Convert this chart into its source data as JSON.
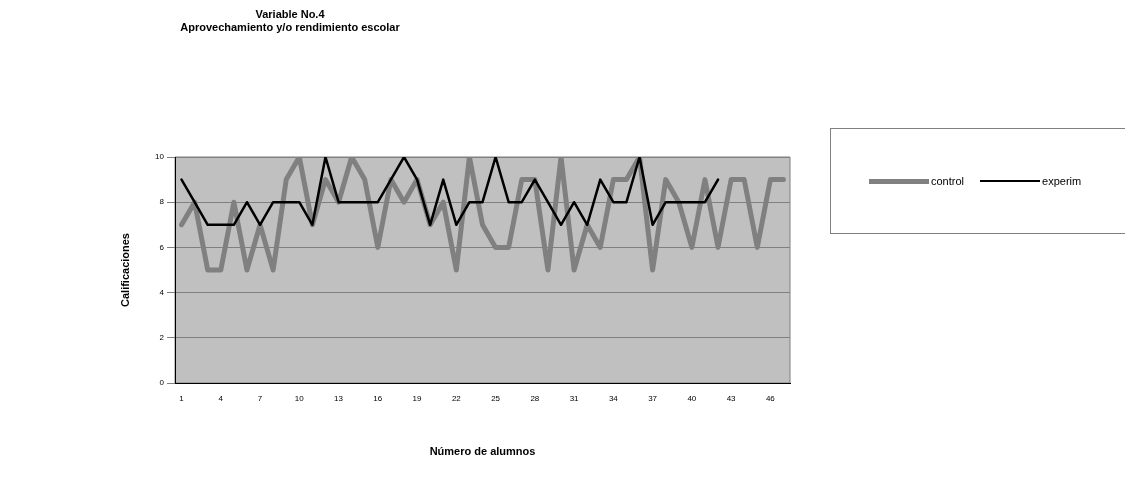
{
  "chart_data": {
    "type": "line",
    "title": "Variable No.4\nAprovechamiento y/o rendimiento escolar",
    "xlabel": "Número de alumnos",
    "ylabel": "Calificaciones",
    "categories": [
      "1",
      null,
      null,
      "4",
      null,
      null,
      "7",
      null,
      null,
      "10",
      null,
      null,
      "13",
      null,
      null,
      "16",
      null,
      null,
      "19",
      null,
      null,
      "22",
      null,
      null,
      "25",
      null,
      null,
      "28",
      null,
      null,
      "31",
      null,
      null,
      "34",
      null,
      null,
      "37",
      null,
      null,
      "40",
      null,
      null,
      "43",
      null,
      null,
      "46",
      null
    ],
    "series": [
      {
        "name": "control",
        "color": "#808080",
        "values": [
          7,
          8,
          5,
          5,
          8,
          5,
          7,
          5,
          9,
          10,
          7,
          9,
          8,
          10,
          9,
          6,
          9,
          8,
          9,
          7,
          8,
          5,
          10,
          7,
          6,
          6,
          9,
          9,
          5,
          10,
          5,
          7,
          6,
          9,
          9,
          10,
          5,
          9,
          8,
          6,
          9,
          6,
          9,
          9,
          6,
          9,
          9
        ]
      },
      {
        "name": "experim",
        "color": "#000000",
        "values": [
          9,
          8,
          7,
          7,
          7,
          8,
          7,
          8,
          8,
          8,
          7,
          10,
          8,
          8,
          8,
          8,
          9,
          10,
          9,
          7,
          9,
          7,
          8,
          8,
          10,
          8,
          8,
          9,
          8,
          7,
          8,
          7,
          9,
          8,
          8,
          10,
          7,
          8,
          8,
          8,
          8,
          9,
          null,
          null,
          null,
          null,
          null
        ]
      }
    ],
    "ylim": [
      0,
      10
    ],
    "yticks": [
      0,
      2,
      4,
      6,
      8,
      10
    ],
    "grid": "y",
    "legend": "right",
    "marker": "none",
    "line_style": "solid"
  }
}
